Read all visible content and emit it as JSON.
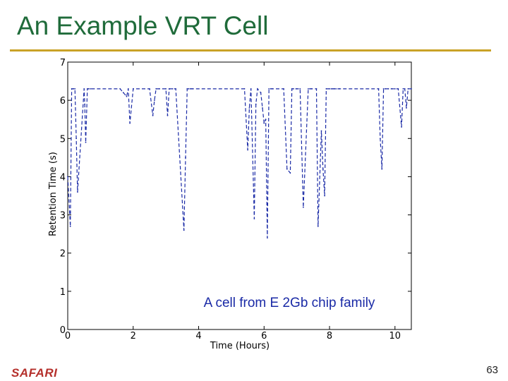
{
  "slide": {
    "title": "An Example VRT Cell",
    "page_number": "63",
    "footer_logo": "SAFARI"
  },
  "colors": {
    "title": "#1f6b3a",
    "rule": "#c9a227",
    "series": "#1a2aa6",
    "logo": "#b5302c"
  },
  "chart_data": {
    "type": "line",
    "title": "",
    "xlabel": "Time (Hours)",
    "ylabel": "Retention Time (s)",
    "xlim": [
      0,
      10.5
    ],
    "ylim": [
      0,
      7
    ],
    "xticks": [
      0,
      2,
      4,
      6,
      8,
      10
    ],
    "yticks": [
      0,
      1,
      2,
      3,
      4,
      5,
      6,
      7
    ],
    "grid": false,
    "annotation": "A cell from E 2Gb chip family",
    "series": [
      {
        "name": "VRT cell",
        "x": [
          0.0,
          0.08,
          0.12,
          0.17,
          0.22,
          0.26,
          0.3,
          0.5,
          0.52,
          0.55,
          0.6,
          0.65,
          0.7,
          1.6,
          1.7,
          1.8,
          1.85,
          1.9,
          2.0,
          2.5,
          2.6,
          2.65,
          2.7,
          2.8,
          3.0,
          3.05,
          3.1,
          3.2,
          3.3,
          3.55,
          3.6,
          3.65,
          3.7,
          3.75,
          3.8,
          5.4,
          5.5,
          5.55,
          5.6,
          5.7,
          5.75,
          5.8,
          5.9,
          5.95,
          6.0,
          6.05,
          6.1,
          6.15,
          6.2,
          6.25,
          6.6,
          6.7,
          6.8,
          6.85,
          6.9,
          7.0,
          7.1,
          7.2,
          7.35,
          7.4,
          7.45,
          7.6,
          7.65,
          7.75,
          7.8,
          7.85,
          7.9,
          8.0,
          8.05,
          8.1,
          8.15,
          8.2,
          8.3,
          9.5,
          9.55,
          9.6,
          9.65,
          9.7,
          9.8,
          9.9,
          10.0,
          10.1,
          10.2,
          10.25,
          10.3,
          10.35,
          10.4,
          10.5
        ],
        "y": [
          4.0,
          2.7,
          6.3,
          6.3,
          6.3,
          5.0,
          3.6,
          6.3,
          5.9,
          4.9,
          6.3,
          6.3,
          6.3,
          6.3,
          6.2,
          6.1,
          6.3,
          5.4,
          6.3,
          6.3,
          5.6,
          6.0,
          6.3,
          6.3,
          6.3,
          5.6,
          6.3,
          6.3,
          6.3,
          2.6,
          4.5,
          6.3,
          6.3,
          6.3,
          6.3,
          6.3,
          4.7,
          5.8,
          6.3,
          2.9,
          5.9,
          6.3,
          6.2,
          5.8,
          5.4,
          5.5,
          2.4,
          6.3,
          6.3,
          6.3,
          6.3,
          4.2,
          4.1,
          6.3,
          6.3,
          6.3,
          6.3,
          3.2,
          6.3,
          6.3,
          6.3,
          6.3,
          2.7,
          5.2,
          4.2,
          3.5,
          6.3,
          6.3,
          6.3,
          6.3,
          6.3,
          6.3,
          6.3,
          6.3,
          5.0,
          4.2,
          6.3,
          6.3,
          6.3,
          6.3,
          6.3,
          6.3,
          5.3,
          6.3,
          6.3,
          5.8,
          6.3,
          6.3
        ]
      }
    ]
  }
}
